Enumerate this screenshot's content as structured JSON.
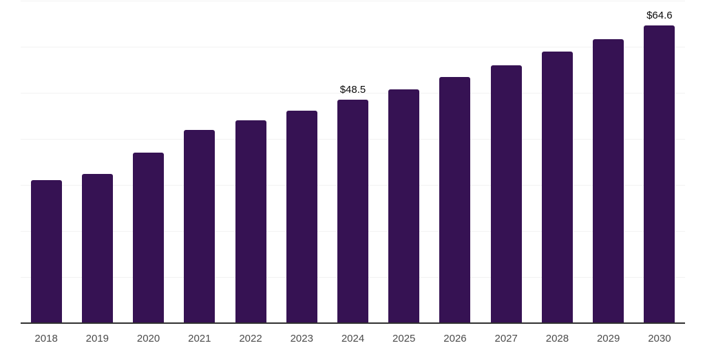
{
  "chart_data": {
    "type": "bar",
    "title": "",
    "xlabel": "",
    "ylabel": "",
    "categories": [
      "2018",
      "2019",
      "2020",
      "2021",
      "2022",
      "2023",
      "2024",
      "2025",
      "2026",
      "2027",
      "2028",
      "2029",
      "2030"
    ],
    "values": [
      31.0,
      32.4,
      37.0,
      41.9,
      44.1,
      46.1,
      48.5,
      50.8,
      53.4,
      56.0,
      58.9,
      61.6,
      64.6
    ],
    "data_labels": {
      "2024": "$48.5",
      "2030": "$64.6"
    },
    "ylim": [
      0,
      70
    ],
    "grid_step": 10,
    "grid": true,
    "legend": false,
    "colors": {
      "bar": "#361253",
      "axis_line": "#303030",
      "gridline": "#f2f2f2",
      "x_label": "#4b4b4b",
      "value_label": "#0a0a0a",
      "background": "#ffffff"
    }
  }
}
